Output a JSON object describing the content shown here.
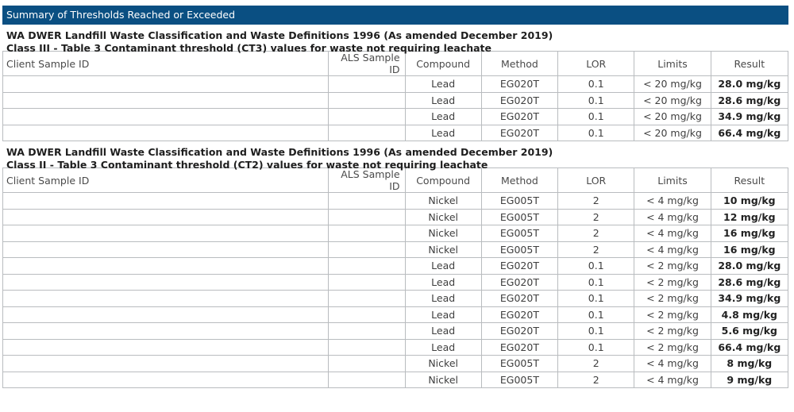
{
  "banner": {
    "title": "Summary of Thresholds Reached or Exceeded"
  },
  "columns": {
    "client": "Client Sample ID",
    "als": "ALS Sample ID",
    "compound": "Compound",
    "method": "Method",
    "lor": "LOR",
    "limits": "Limits",
    "result": "Result"
  },
  "sections": [
    {
      "line1": "WA DWER Landfill Waste Classification and Waste Definitions 1996 (As amended December 2019)",
      "line2": "Class III - Table 3 Contaminant threshold (CT3) values for waste not requiring leachate",
      "rows": [
        {
          "client": "",
          "als": "",
          "compound": "Lead",
          "method": "EG020T",
          "lor": "0.1",
          "limits": "< 20 mg/kg",
          "result": "28.0 mg/kg"
        },
        {
          "client": "",
          "als": "",
          "compound": "Lead",
          "method": "EG020T",
          "lor": "0.1",
          "limits": "< 20 mg/kg",
          "result": "28.6 mg/kg"
        },
        {
          "client": "",
          "als": "",
          "compound": "Lead",
          "method": "EG020T",
          "lor": "0.1",
          "limits": "< 20 mg/kg",
          "result": "34.9 mg/kg"
        },
        {
          "client": "",
          "als": "",
          "compound": "Lead",
          "method": "EG020T",
          "lor": "0.1",
          "limits": "< 20 mg/kg",
          "result": "66.4 mg/kg"
        }
      ]
    },
    {
      "line1": "WA DWER Landfill Waste Classification and Waste Definitions 1996 (As amended December 2019)",
      "line2": "Class II - Table 3 Contaminant threshold (CT2) values for waste not requiring leachate",
      "rows": [
        {
          "client": "",
          "als": "",
          "compound": "Nickel",
          "method": "EG005T",
          "lor": "2",
          "limits": "< 4 mg/kg",
          "result": "10 mg/kg"
        },
        {
          "client": "",
          "als": "",
          "compound": "Nickel",
          "method": "EG005T",
          "lor": "2",
          "limits": "< 4 mg/kg",
          "result": "12 mg/kg"
        },
        {
          "client": "",
          "als": "",
          "compound": "Nickel",
          "method": "EG005T",
          "lor": "2",
          "limits": "< 4 mg/kg",
          "result": "16 mg/kg"
        },
        {
          "client": "",
          "als": "",
          "compound": "Nickel",
          "method": "EG005T",
          "lor": "2",
          "limits": "< 4 mg/kg",
          "result": "16 mg/kg"
        },
        {
          "client": "",
          "als": "",
          "compound": "Lead",
          "method": "EG020T",
          "lor": "0.1",
          "limits": "< 2 mg/kg",
          "result": "28.0 mg/kg"
        },
        {
          "client": "",
          "als": "",
          "compound": "Lead",
          "method": "EG020T",
          "lor": "0.1",
          "limits": "< 2 mg/kg",
          "result": "28.6 mg/kg"
        },
        {
          "client": "",
          "als": "",
          "compound": "Lead",
          "method": "EG020T",
          "lor": "0.1",
          "limits": "< 2 mg/kg",
          "result": "34.9 mg/kg"
        },
        {
          "client": "",
          "als": "",
          "compound": "Lead",
          "method": "EG020T",
          "lor": "0.1",
          "limits": "< 2 mg/kg",
          "result": "4.8 mg/kg"
        },
        {
          "client": "",
          "als": "",
          "compound": "Lead",
          "method": "EG020T",
          "lor": "0.1",
          "limits": "< 2 mg/kg",
          "result": "5.6 mg/kg"
        },
        {
          "client": "",
          "als": "",
          "compound": "Lead",
          "method": "EG020T",
          "lor": "0.1",
          "limits": "< 2 mg/kg",
          "result": "66.4 mg/kg"
        },
        {
          "client": "",
          "als": "",
          "compound": "Nickel",
          "method": "EG005T",
          "lor": "2",
          "limits": "< 4 mg/kg",
          "result": "8 mg/kg"
        },
        {
          "client": "",
          "als": "",
          "compound": "Nickel",
          "method": "EG005T",
          "lor": "2",
          "limits": "< 4 mg/kg",
          "result": "9 mg/kg"
        }
      ]
    }
  ]
}
